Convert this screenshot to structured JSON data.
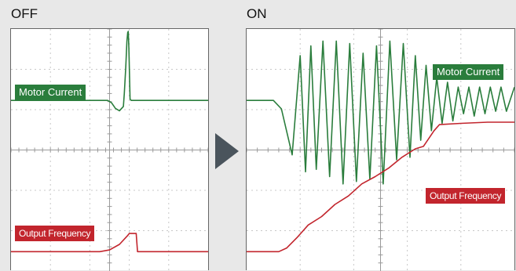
{
  "colors": {
    "current": "#2a7d3c",
    "frequency": "#c2252d",
    "arrow": "#4a545c",
    "grid": "#c8c8c8",
    "background": "#e8e8e8"
  },
  "arrow_icon": "chevron-right-triangle",
  "chart_data": [
    {
      "type": "line",
      "title": "OFF",
      "grid": true,
      "x_range": [
        0,
        10
      ],
      "y_range": [
        0,
        10
      ],
      "series": [
        {
          "name": "Motor Current",
          "x": [
            0,
            4.9,
            5.1,
            5.3,
            5.5,
            5.7,
            5.75,
            5.82,
            5.88,
            5.92,
            5.95,
            5.98,
            6.04,
            6.1,
            10
          ],
          "y": [
            7.05,
            7.05,
            6.95,
            6.72,
            6.62,
            6.8,
            7.35,
            8.4,
            9.5,
            9.85,
            9.9,
            9.2,
            7.1,
            7.05,
            7.05
          ]
        },
        {
          "name": "Output Frequency",
          "x": [
            0,
            4.5,
            5.0,
            5.5,
            5.9,
            6.0,
            6.35,
            6.42,
            10
          ],
          "y": [
            0.8,
            0.8,
            0.87,
            1.1,
            1.45,
            1.55,
            1.55,
            0.8,
            0.8
          ]
        }
      ]
    },
    {
      "type": "line",
      "title": "ON",
      "grid": true,
      "x_range": [
        0,
        10
      ],
      "y_range": [
        0,
        10
      ],
      "series": [
        {
          "name": "Motor Current",
          "x": [
            0,
            1.0,
            1.3,
            1.7,
            2.0,
            2.2,
            2.4,
            2.6,
            2.85,
            3.1,
            3.35,
            3.6,
            3.85,
            4.1,
            4.35,
            4.6,
            4.85,
            5.1,
            5.35,
            5.6,
            5.85,
            6.1,
            6.3,
            6.5,
            6.7,
            6.9,
            7.1,
            7.3,
            7.5,
            7.7,
            7.9,
            8.1,
            8.3,
            8.5,
            8.7,
            8.9,
            9.1,
            9.3,
            9.5,
            9.7,
            10
          ],
          "y": [
            7.05,
            7.05,
            6.7,
            4.8,
            8.9,
            4.1,
            9.3,
            4.2,
            9.5,
            3.9,
            9.5,
            3.6,
            9.4,
            3.7,
            9.0,
            3.8,
            9.3,
            3.6,
            9.5,
            4.6,
            9.4,
            4.7,
            8.9,
            5.4,
            8.5,
            5.8,
            8.0,
            6.1,
            7.8,
            6.2,
            7.6,
            6.5,
            7.6,
            6.4,
            7.6,
            6.5,
            7.6,
            6.6,
            7.6,
            6.6,
            7.6
          ]
        },
        {
          "name": "Output Frequency",
          "x": [
            0,
            1.2,
            1.5,
            1.9,
            2.3,
            2.8,
            3.3,
            3.8,
            4.3,
            4.8,
            5.3,
            5.8,
            6.3,
            6.6,
            7.0,
            7.2,
            8.0,
            9.0,
            10
          ],
          "y": [
            0.8,
            0.8,
            0.95,
            1.4,
            1.9,
            2.25,
            2.75,
            3.1,
            3.6,
            3.9,
            4.25,
            4.7,
            5.05,
            5.15,
            5.8,
            6.05,
            6.1,
            6.15,
            6.15
          ]
        }
      ]
    }
  ]
}
